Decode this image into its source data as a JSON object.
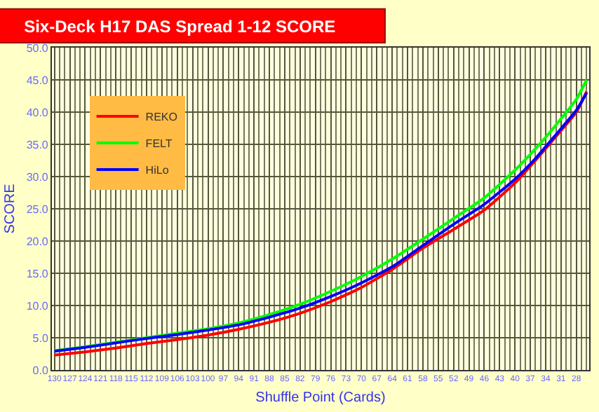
{
  "chart_data": {
    "type": "line",
    "title": "Six-Deck H17 DAS Spread 1-12 SCORE",
    "xlabel": "Shuffle Point (Cards)",
    "ylabel": "SCORE",
    "xlim": [
      130.5,
      25.5
    ],
    "xticks": [
      130,
      127,
      124,
      121,
      118,
      115,
      112,
      109,
      106,
      103,
      100,
      97,
      94,
      91,
      88,
      85,
      82,
      79,
      76,
      73,
      70,
      67,
      64,
      61,
      58,
      55,
      52,
      49,
      46,
      43,
      40,
      37,
      34,
      31,
      28
    ],
    "ylim": [
      0,
      50
    ],
    "yticks": [
      {
        "value": 0,
        "label": "0.0"
      },
      {
        "value": 5,
        "label": "5.0"
      },
      {
        "value": 10,
        "label": "10.0"
      },
      {
        "value": 15,
        "label": "15.0"
      },
      {
        "value": 20,
        "label": "20.0"
      },
      {
        "value": 25,
        "label": "25.0"
      },
      {
        "value": 30,
        "label": "30.0"
      },
      {
        "value": 35,
        "label": "35.0"
      },
      {
        "value": 40,
        "label": "40.0"
      },
      {
        "value": 45,
        "label": "45.0"
      },
      {
        "value": 50,
        "label": "50.0"
      }
    ],
    "grid": true,
    "legend": "top left",
    "marker": "none",
    "line_style": "solid",
    "x": [
      130,
      124,
      118,
      112,
      106,
      100,
      94,
      88,
      82,
      76,
      70,
      64,
      58,
      52,
      46,
      40,
      36,
      32,
      28,
      26
    ],
    "series": [
      {
        "name": "REKO",
        "color": "#ff0000",
        "values": [
          2.3,
          2.8,
          3.4,
          4.1,
          4.7,
          5.4,
          6.3,
          7.4,
          8.8,
          10.6,
          12.8,
          15.6,
          18.9,
          21.8,
          24.8,
          29.0,
          32.5,
          36.2,
          40.0,
          43.2
        ]
      },
      {
        "name": "FELT",
        "color": "#00ff00",
        "values": [
          3.0,
          3.6,
          4.3,
          5.0,
          5.7,
          6.4,
          7.3,
          8.6,
          10.2,
          12.2,
          14.5,
          17.2,
          20.3,
          23.5,
          26.7,
          31.0,
          34.3,
          38.0,
          42.0,
          45.0
        ]
      },
      {
        "name": "HiLo",
        "color": "#0000ff",
        "values": [
          2.9,
          3.5,
          4.2,
          4.9,
          5.5,
          6.2,
          7.0,
          8.2,
          9.6,
          11.4,
          13.5,
          16.0,
          19.3,
          22.6,
          25.7,
          29.6,
          32.8,
          36.5,
          40.3,
          43.0
        ]
      }
    ]
  }
}
